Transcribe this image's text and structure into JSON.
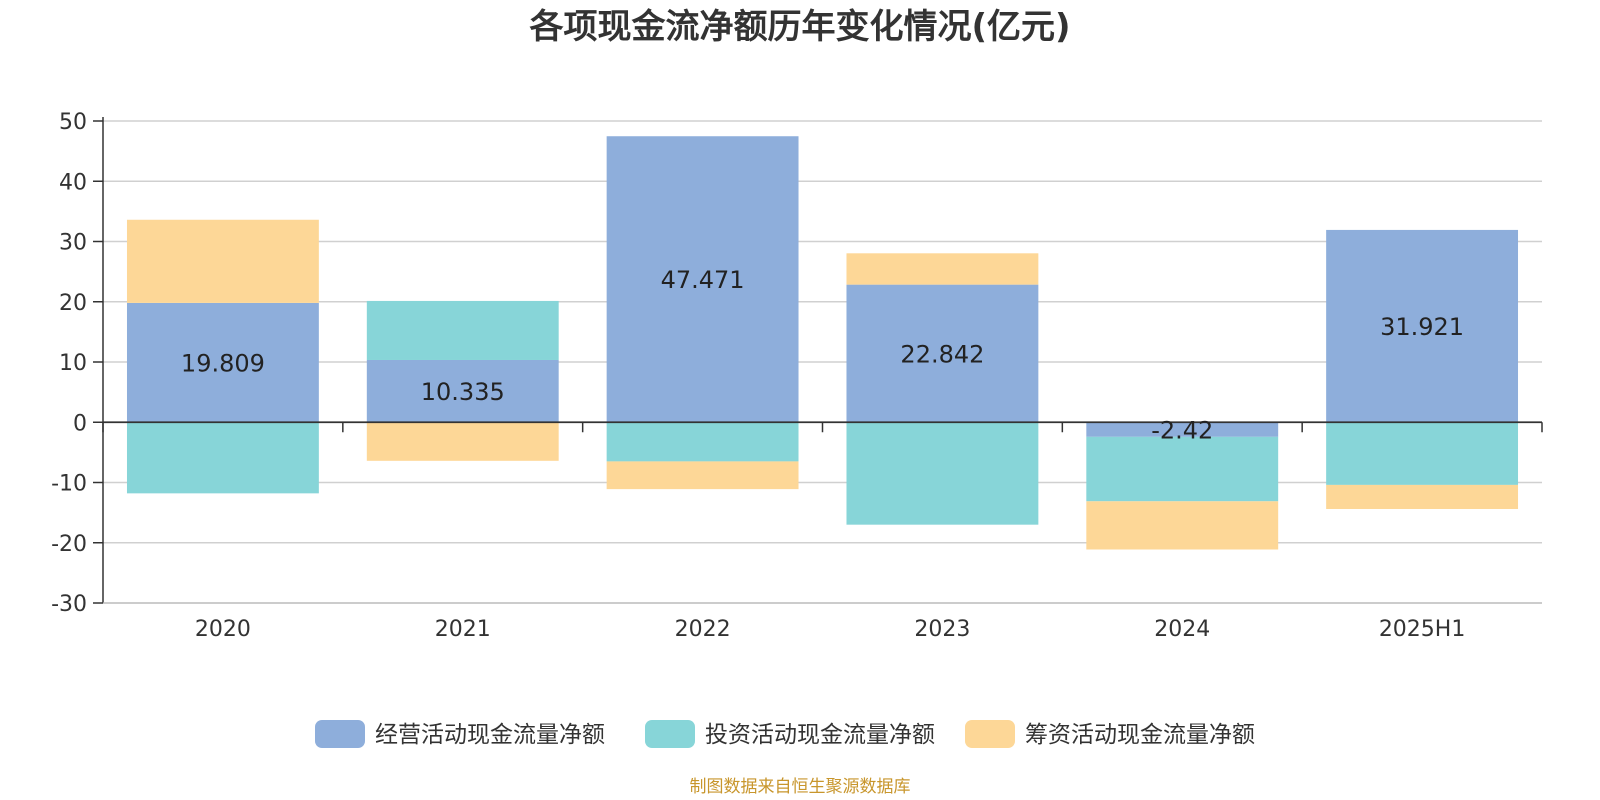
{
  "chart_data": {
    "type": "bar",
    "stacked": true,
    "title": "各项现金流净额历年变化情况(亿元)",
    "categories": [
      "2020",
      "2021",
      "2022",
      "2023",
      "2024",
      "2025H1"
    ],
    "ylim": [
      -30,
      50
    ],
    "yticks": [
      "50",
      "40",
      "30",
      "20",
      "10",
      "0",
      "-10",
      "-20",
      "-30"
    ],
    "ytick_values": [
      50,
      40,
      30,
      20,
      10,
      0,
      -10,
      -20,
      -30
    ],
    "series": [
      {
        "name": "经营活动现金流量净额",
        "color": "#8eaedb",
        "values": [
          19.809,
          10.335,
          47.471,
          22.842,
          -2.42,
          31.921
        ],
        "labels": [
          "19.809",
          "10.335",
          "47.471",
          "22.842",
          "-2.42",
          "31.921"
        ]
      },
      {
        "name": "投资活动现金流量净额",
        "color": "#87d5d8",
        "values": [
          -11.8,
          9.8,
          -6.5,
          -17.0,
          -10.7,
          -10.4
        ]
      },
      {
        "name": "筹资活动现金流量净额",
        "color": "#fdd797",
        "values": [
          13.8,
          -6.4,
          -4.6,
          5.2,
          -8.0,
          -4.0
        ]
      }
    ],
    "legend_position": "bottom",
    "grid": true
  },
  "source_text": "制图数据来自恒生聚源数据库",
  "colors": {
    "axis": "#333333",
    "grid": "#d0d0d0",
    "source": "#c8962c"
  }
}
